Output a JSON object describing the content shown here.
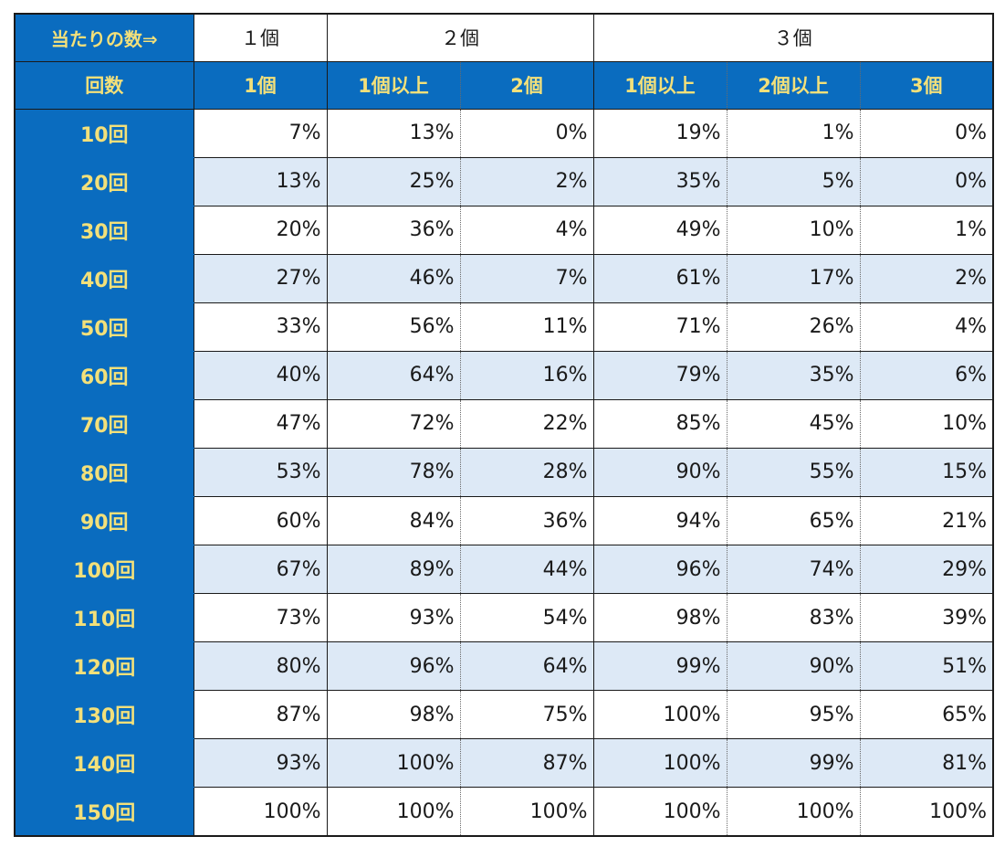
{
  "header": {
    "corner_label": "当たりの数⇒",
    "groups": [
      "１個",
      "２個",
      "３個"
    ],
    "row_label": "回数",
    "subheaders": [
      "1個",
      "1個以上",
      "2個",
      "1個以上",
      "2個以上",
      "3個"
    ]
  },
  "rows": [
    {
      "label": "10回",
      "values": [
        "7%",
        "13%",
        "0%",
        "19%",
        "1%",
        "0%"
      ]
    },
    {
      "label": "20回",
      "values": [
        "13%",
        "25%",
        "2%",
        "35%",
        "5%",
        "0%"
      ]
    },
    {
      "label": "30回",
      "values": [
        "20%",
        "36%",
        "4%",
        "49%",
        "10%",
        "1%"
      ]
    },
    {
      "label": "40回",
      "values": [
        "27%",
        "46%",
        "7%",
        "61%",
        "17%",
        "2%"
      ]
    },
    {
      "label": "50回",
      "values": [
        "33%",
        "56%",
        "11%",
        "71%",
        "26%",
        "4%"
      ]
    },
    {
      "label": "60回",
      "values": [
        "40%",
        "64%",
        "16%",
        "79%",
        "35%",
        "6%"
      ]
    },
    {
      "label": "70回",
      "values": [
        "47%",
        "72%",
        "22%",
        "85%",
        "45%",
        "10%"
      ]
    },
    {
      "label": "80回",
      "values": [
        "53%",
        "78%",
        "28%",
        "90%",
        "55%",
        "15%"
      ]
    },
    {
      "label": "90回",
      "values": [
        "60%",
        "84%",
        "36%",
        "94%",
        "65%",
        "21%"
      ]
    },
    {
      "label": "100回",
      "values": [
        "67%",
        "89%",
        "44%",
        "96%",
        "74%",
        "29%"
      ]
    },
    {
      "label": "110回",
      "values": [
        "73%",
        "93%",
        "54%",
        "98%",
        "83%",
        "39%"
      ]
    },
    {
      "label": "120回",
      "values": [
        "80%",
        "96%",
        "64%",
        "99%",
        "90%",
        "51%"
      ]
    },
    {
      "label": "130回",
      "values": [
        "87%",
        "98%",
        "75%",
        "100%",
        "95%",
        "65%"
      ]
    },
    {
      "label": "140回",
      "values": [
        "93%",
        "100%",
        "87%",
        "100%",
        "99%",
        "81%"
      ]
    },
    {
      "label": "150回",
      "values": [
        "100%",
        "100%",
        "100%",
        "100%",
        "100%",
        "100%"
      ]
    }
  ],
  "colors": {
    "header_bg": "#0a6cbf",
    "header_text": "#f3e07a",
    "alt_row_bg": "#dde9f6",
    "border": "#1a1a1a"
  }
}
